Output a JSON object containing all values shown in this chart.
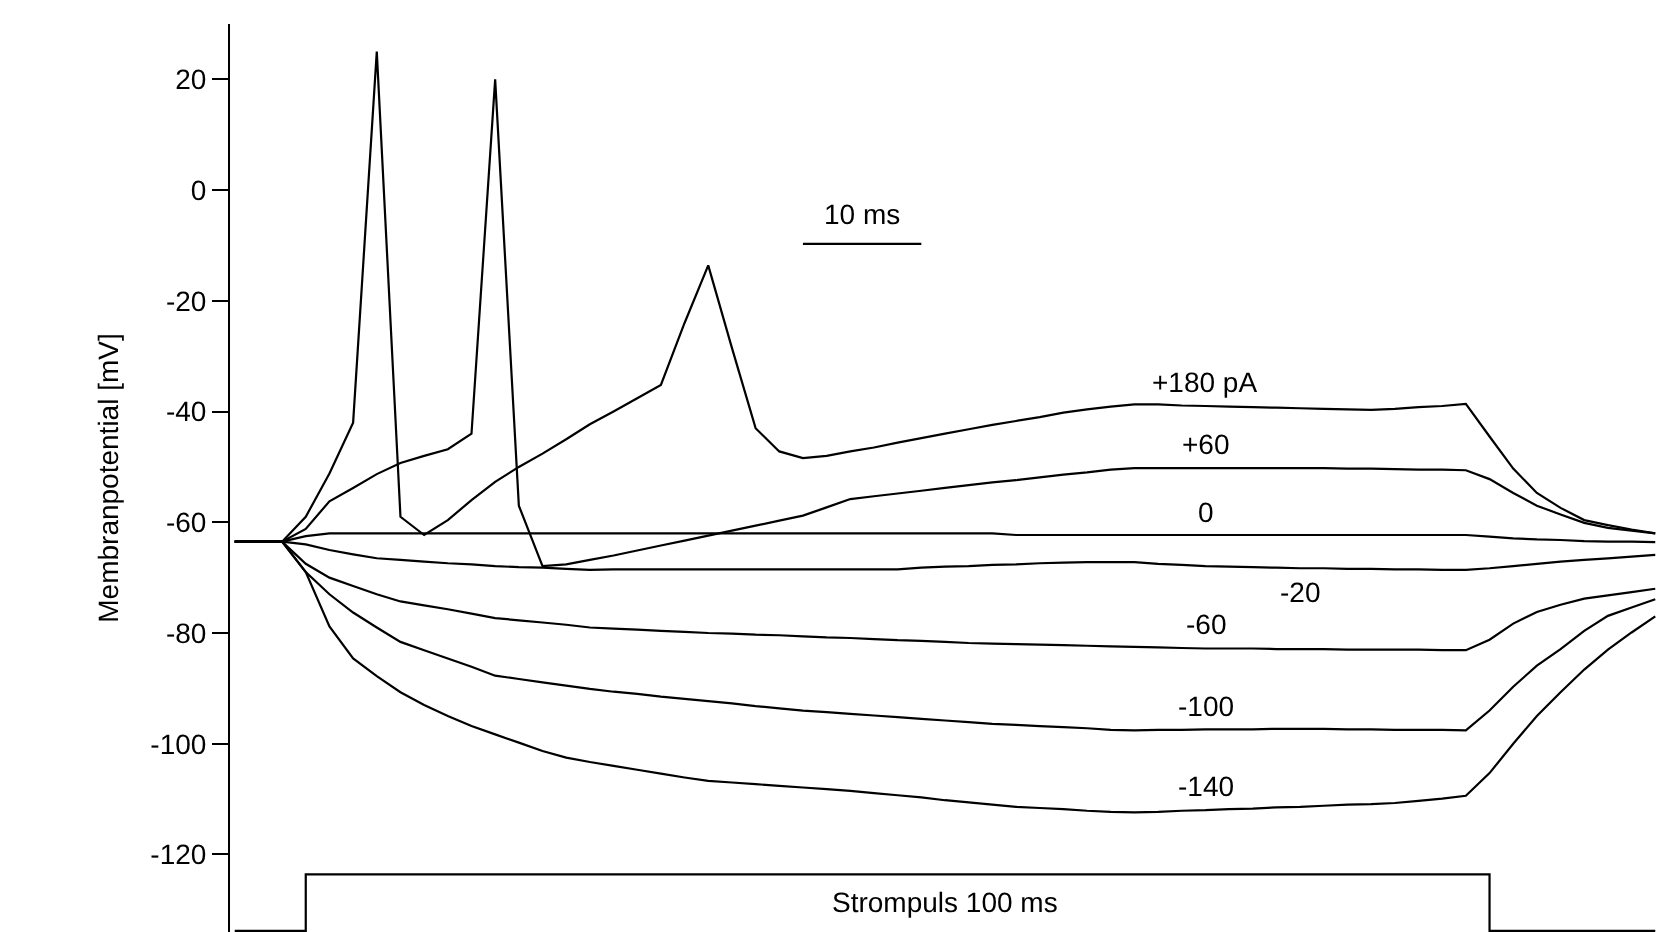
{
  "chart_data": {
    "type": "line",
    "ylabel": "Membranpotential [mV]",
    "categories": [
      null,
      null,
      null,
      null,
      null,
      null,
      null,
      null,
      null,
      null,
      null,
      null,
      null,
      null,
      null,
      null,
      null,
      null,
      null,
      null,
      null,
      null,
      null,
      null,
      null,
      null,
      null,
      null,
      null,
      null,
      null,
      null,
      null,
      null,
      null,
      null,
      null,
      null,
      null,
      null,
      null,
      null,
      null,
      null,
      null,
      null,
      null,
      null,
      null,
      null,
      null,
      null,
      null,
      null,
      null,
      null,
      null,
      null,
      null,
      null,
      null
    ],
    "ylim": [
      -134,
      30
    ],
    "yticks": [
      -120,
      -100,
      -80,
      -60,
      -40,
      -20,
      0,
      20
    ],
    "tick_labels": "y",
    "legend": false,
    "series": [
      {
        "name": "+180 pA",
        "color": "#000000",
        "values": [
          -63.5,
          -63.5,
          -63.5,
          -59,
          -51.2,
          -42,
          25,
          -59,
          -62.3,
          -59.6,
          -56,
          -52.7,
          -50,
          -47.6,
          -45,
          -42.3,
          -40,
          -37.6,
          -35.2,
          -24,
          -13.6,
          -28.5,
          -43,
          -47.2,
          -48.4,
          -48,
          -47.2,
          -46.5,
          -45.6,
          -44.8,
          -44,
          -43.2,
          -42.4,
          -41.7,
          -41,
          -40.2,
          -39.6,
          -39.1,
          -38.7,
          -38.7,
          -38.9,
          -39,
          -39.1,
          -39.2,
          -39.3,
          -39.4,
          -39.5,
          -39.6,
          -39.7,
          -39.5,
          -39.2,
          -39,
          -38.6,
          -44.5,
          -50.3,
          -54.7,
          -57.4,
          -59.6,
          -60.5,
          -61.3,
          -62
        ]
      },
      {
        "name": "+60",
        "color": "#000000",
        "values": [
          -63.5,
          -63.5,
          -63.5,
          -61.2,
          -56.2,
          -53.8,
          -51.3,
          -49.3,
          -48,
          -46.8,
          -44,
          20,
          -57,
          -67.9,
          -67.6,
          -66.8,
          -66,
          -65.1,
          -64.2,
          -63.3,
          -62.4,
          -61.5,
          -60.6,
          -59.7,
          -58.8,
          -57.3,
          -55.8,
          -55.3,
          -54.8,
          -54.3,
          -53.8,
          -53.3,
          -52.8,
          -52.4,
          -51.9,
          -51.4,
          -51,
          -50.5,
          -50.2,
          -50.2,
          -50.2,
          -50.2,
          -50.2,
          -50.2,
          -50.2,
          -50.2,
          -50.2,
          -50.3,
          -50.3,
          -50.4,
          -50.5,
          -50.5,
          -50.6,
          -52.2,
          -54.7,
          -57,
          -58.6,
          -60.1,
          -61,
          -61.5,
          -62
        ]
      },
      {
        "name": "0",
        "color": "#000000",
        "values": [
          -63.5,
          -63.5,
          -63.5,
          -62.5,
          -62,
          -62,
          -62,
          -62,
          -62,
          -62,
          -62,
          -62,
          -62,
          -62,
          -62,
          -62,
          -62,
          -62,
          -62,
          -62,
          -62,
          -62,
          -62,
          -62,
          -62,
          -62,
          -62,
          -62,
          -62,
          -62,
          -62,
          -62,
          -62,
          -62.3,
          -62.3,
          -62.3,
          -62.3,
          -62.3,
          -62.3,
          -62.3,
          -62.3,
          -62.3,
          -62.3,
          -62.3,
          -62.3,
          -62.3,
          -62.3,
          -62.3,
          -62.3,
          -62.3,
          -62.3,
          -62.3,
          -62.3,
          -62.6,
          -62.9,
          -63.1,
          -63.2,
          -63.4,
          -63.5,
          -63.5,
          -63.6
        ]
      },
      {
        "name": "-20",
        "color": "#000000",
        "values": [
          -63.5,
          -63.5,
          -63.5,
          -64,
          -65,
          -65.8,
          -66.5,
          -66.8,
          -67.1,
          -67.4,
          -67.6,
          -67.9,
          -68.1,
          -68.2,
          -68.4,
          -68.6,
          -68.5,
          -68.5,
          -68.5,
          -68.5,
          -68.5,
          -68.5,
          -68.5,
          -68.5,
          -68.5,
          -68.5,
          -68.5,
          -68.5,
          -68.5,
          -68.2,
          -68,
          -67.9,
          -67.7,
          -67.6,
          -67.4,
          -67.3,
          -67.2,
          -67.2,
          -67.2,
          -67.5,
          -67.7,
          -67.9,
          -68,
          -68.1,
          -68.2,
          -68.3,
          -68.3,
          -68.4,
          -68.4,
          -68.5,
          -68.5,
          -68.6,
          -68.6,
          -68.3,
          -67.9,
          -67.5,
          -67.1,
          -66.8,
          -66.5,
          -66.2,
          -65.9
        ]
      },
      {
        "name": "-60",
        "color": "#000000",
        "values": [
          -63.5,
          -63.5,
          -63.5,
          -67.5,
          -70,
          -71.5,
          -73,
          -74.3,
          -75,
          -75.7,
          -76.5,
          -77.3,
          -77.7,
          -78.1,
          -78.5,
          -79,
          -79.2,
          -79.4,
          -79.6,
          -79.8,
          -80,
          -80.1,
          -80.3,
          -80.4,
          -80.6,
          -80.8,
          -80.9,
          -81.1,
          -81.3,
          -81.4,
          -81.6,
          -81.8,
          -81.9,
          -82,
          -82.1,
          -82.2,
          -82.3,
          -82.4,
          -82.5,
          -82.6,
          -82.7,
          -82.8,
          -82.8,
          -82.8,
          -82.9,
          -82.9,
          -82.9,
          -83,
          -83,
          -83,
          -83,
          -83.1,
          -83.1,
          -81.2,
          -78.3,
          -76.2,
          -74.9,
          -73.8,
          -73.2,
          -72.6,
          -72
        ]
      },
      {
        "name": "-100",
        "color": "#000000",
        "values": [
          -63.5,
          -63.5,
          -63.5,
          -69,
          -73,
          -76.3,
          -79,
          -81.6,
          -83.1,
          -84.6,
          -86.1,
          -87.7,
          -88.3,
          -88.9,
          -89.5,
          -90.1,
          -90.6,
          -91,
          -91.5,
          -91.9,
          -92.3,
          -92.7,
          -93.2,
          -93.6,
          -94,
          -94.3,
          -94.6,
          -94.9,
          -95.2,
          -95.5,
          -95.8,
          -96.1,
          -96.4,
          -96.6,
          -96.8,
          -97,
          -97.2,
          -97.5,
          -97.6,
          -97.5,
          -97.5,
          -97.4,
          -97.4,
          -97.4,
          -97.3,
          -97.3,
          -97.3,
          -97.4,
          -97.4,
          -97.5,
          -97.5,
          -97.5,
          -97.6,
          -94,
          -89.7,
          -85.9,
          -82.9,
          -79.6,
          -76.9,
          -75.4,
          -73.9
        ]
      },
      {
        "name": "-140",
        "color": "#000000",
        "values": [
          -63.5,
          -63.5,
          -63.5,
          -69,
          -78.8,
          -84.6,
          -87.8,
          -90.7,
          -93,
          -95,
          -96.8,
          -98.3,
          -99.8,
          -101.3,
          -102.5,
          -103.3,
          -104,
          -104.7,
          -105.4,
          -106.1,
          -106.7,
          -107,
          -107.3,
          -107.6,
          -107.9,
          -108.2,
          -108.5,
          -108.9,
          -109.3,
          -109.7,
          -110.2,
          -110.6,
          -111,
          -111.4,
          -111.6,
          -111.8,
          -112.1,
          -112.3,
          -112.4,
          -112.3,
          -112.1,
          -112,
          -111.8,
          -111.7,
          -111.5,
          -111.4,
          -111.2,
          -111,
          -110.9,
          -110.7,
          -110.3,
          -109.9,
          -109.4,
          -105.3,
          -100,
          -95,
          -90.7,
          -86.6,
          -83,
          -79.9,
          -77
        ]
      },
      {
        "color": "#000000",
        "values": [
          null,
          null,
          null,
          null,
          null,
          null,
          null,
          null,
          null,
          null,
          null,
          null,
          null,
          null,
          null,
          null,
          null,
          null,
          null,
          null,
          null,
          null,
          null,
          null,
          -9.7,
          -9.7,
          -9.7,
          -9.7,
          -9.7,
          -9.7,
          null,
          null,
          null,
          null,
          null,
          null,
          null,
          null,
          null,
          null,
          null,
          null,
          null,
          null,
          null,
          null,
          null,
          null,
          null,
          null,
          null,
          null,
          null,
          null,
          null,
          null,
          null,
          null,
          null,
          null,
          null
        ]
      },
      {
        "type": "step",
        "color": "#000000",
        "values": [
          -133.8,
          -133.8,
          -133.8,
          -123.6,
          -123.6,
          -123.6,
          -123.6,
          -123.6,
          -123.6,
          -123.6,
          -123.6,
          -123.6,
          -123.6,
          -123.6,
          -123.6,
          -123.6,
          -123.6,
          -123.6,
          -123.6,
          -123.6,
          -123.6,
          -123.6,
          -123.6,
          -123.6,
          -123.6,
          -123.6,
          -123.6,
          -123.6,
          -123.6,
          -123.6,
          -123.6,
          -123.6,
          -123.6,
          -123.6,
          -123.6,
          -123.6,
          -123.6,
          -123.6,
          -123.6,
          -123.6,
          -123.6,
          -123.6,
          -123.6,
          -123.6,
          -123.6,
          -123.6,
          -123.6,
          -123.6,
          -123.6,
          -123.6,
          -123.6,
          -123.6,
          -123.6,
          -133.8,
          -133.8,
          -133.8,
          -133.8,
          -133.8,
          -133.8,
          -133.8,
          -133.8
        ]
      }
    ],
    "annotations": [
      "10 ms",
      "Strompuls 100 ms"
    ]
  }
}
